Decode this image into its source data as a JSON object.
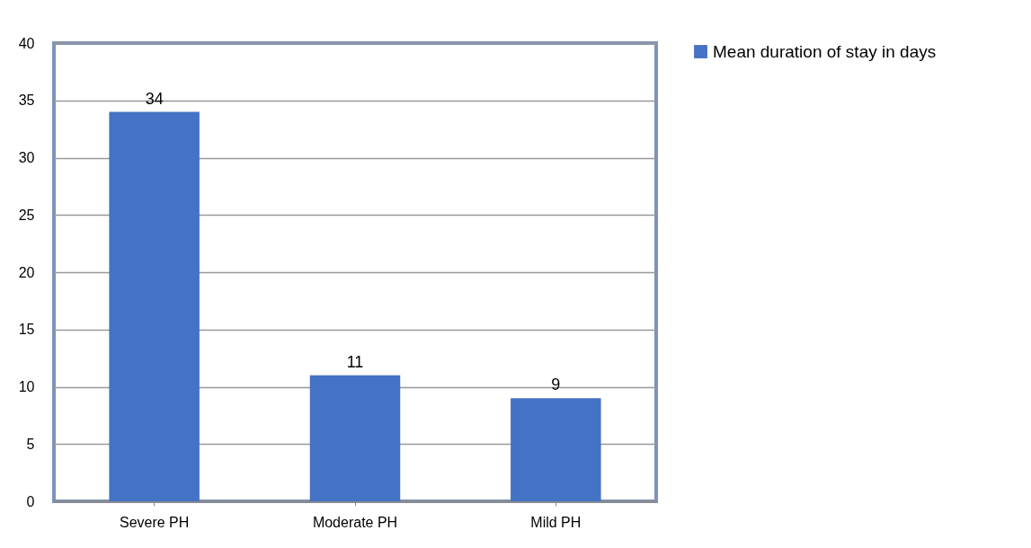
{
  "chart_data": {
    "type": "bar",
    "categories": [
      "Severe PH",
      "Moderate PH",
      "Mild PH"
    ],
    "series": [
      {
        "name": "Mean duration of stay in days",
        "color": "#4472c4",
        "values": [
          34,
          11,
          9
        ]
      }
    ],
    "ylim": [
      0,
      40
    ],
    "yticks": [
      0,
      5,
      10,
      15,
      20,
      25,
      30,
      35,
      40
    ],
    "grid": "y",
    "legend": "right",
    "data_labels": true
  }
}
